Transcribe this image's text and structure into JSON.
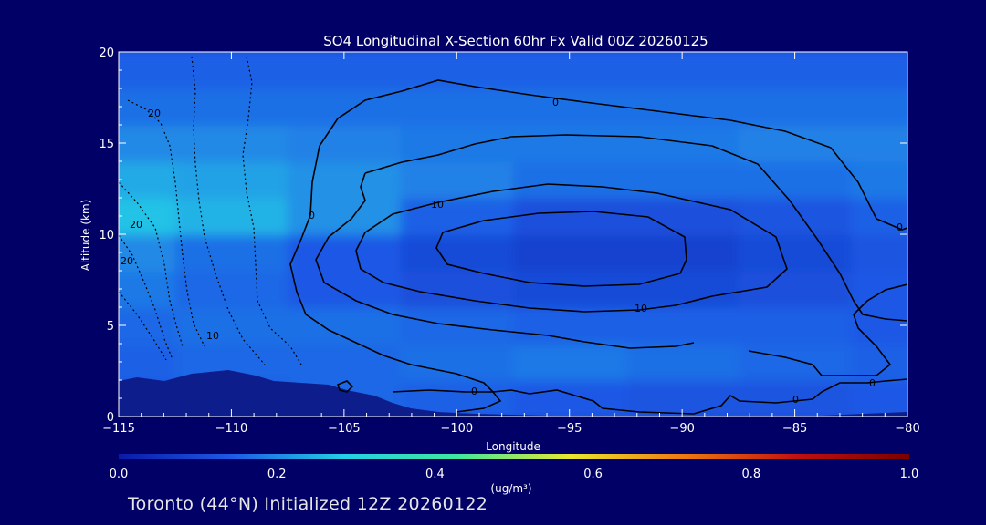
{
  "chart_data": {
    "type": "heatmap",
    "title": "SO4 Longitudinal X-Section 60hr  Fx Valid 00Z 20260125",
    "xlabel": "Longitude",
    "ylabel": "Altitude (km)",
    "xlim": [
      -115,
      -80
    ],
    "ylim": [
      0,
      20
    ],
    "x_ticks": [
      -115,
      -110,
      -105,
      -100,
      -95,
      -90,
      -85,
      -80
    ],
    "x_tick_labels": [
      "−115",
      "−110",
      "−105",
      "−100",
      "−95",
      "−90",
      "−85",
      "−80"
    ],
    "y_ticks": [
      0,
      5,
      10,
      15,
      20
    ],
    "y_tick_labels": [
      "0",
      "5",
      "10",
      "15",
      "20"
    ],
    "x": [
      -115,
      -110,
      -105,
      -100,
      -95,
      -90,
      -85,
      -80
    ],
    "y": [
      1,
      3,
      5,
      7,
      9,
      11,
      13,
      15,
      17,
      19
    ],
    "values": [
      [
        0.14,
        0.15,
        0.16,
        0.15,
        0.14,
        0.13,
        0.13,
        0.14
      ],
      [
        0.15,
        0.16,
        0.16,
        0.17,
        0.18,
        0.17,
        0.16,
        0.15
      ],
      [
        0.16,
        0.17,
        0.17,
        0.16,
        0.15,
        0.15,
        0.15,
        0.14
      ],
      [
        0.18,
        0.16,
        0.14,
        0.12,
        0.11,
        0.11,
        0.12,
        0.14
      ],
      [
        0.2,
        0.17,
        0.14,
        0.11,
        0.09,
        0.09,
        0.11,
        0.13
      ],
      [
        0.27,
        0.25,
        0.21,
        0.15,
        0.12,
        0.12,
        0.13,
        0.15
      ],
      [
        0.24,
        0.23,
        0.21,
        0.19,
        0.17,
        0.17,
        0.17,
        0.18
      ],
      [
        0.2,
        0.2,
        0.19,
        0.18,
        0.18,
        0.18,
        0.19,
        0.19
      ],
      [
        0.17,
        0.17,
        0.17,
        0.17,
        0.17,
        0.17,
        0.17,
        0.17
      ],
      [
        0.15,
        0.15,
        0.15,
        0.15,
        0.15,
        0.15,
        0.15,
        0.15
      ]
    ],
    "contour_labels": [
      "0",
      "0",
      "10",
      "10",
      "0",
      "0",
      "0",
      "0",
      "20",
      "20",
      "20",
      "10"
    ],
    "colorbar": {
      "min": 0.0,
      "max": 1.0,
      "ticks": [
        0.0,
        0.2,
        0.4,
        0.6,
        0.8,
        1.0
      ],
      "tick_labels": [
        "0.0",
        "0.2",
        "0.4",
        "0.6",
        "0.8",
        "1.0"
      ],
      "unit_label": "(ug/m³)",
      "colors": [
        "#0a1aa8",
        "#1e5ae6",
        "#23d0e6",
        "#3ee8a0",
        "#e8e830",
        "#f07a10",
        "#c01010",
        "#7a0000"
      ]
    },
    "grid": false
  },
  "footer": {
    "text": "Toronto (44°N) Initialized 12Z 20260122"
  },
  "colors": {
    "background": "#000066",
    "terrain": "#0d1e8c",
    "contour": "#000000"
  }
}
